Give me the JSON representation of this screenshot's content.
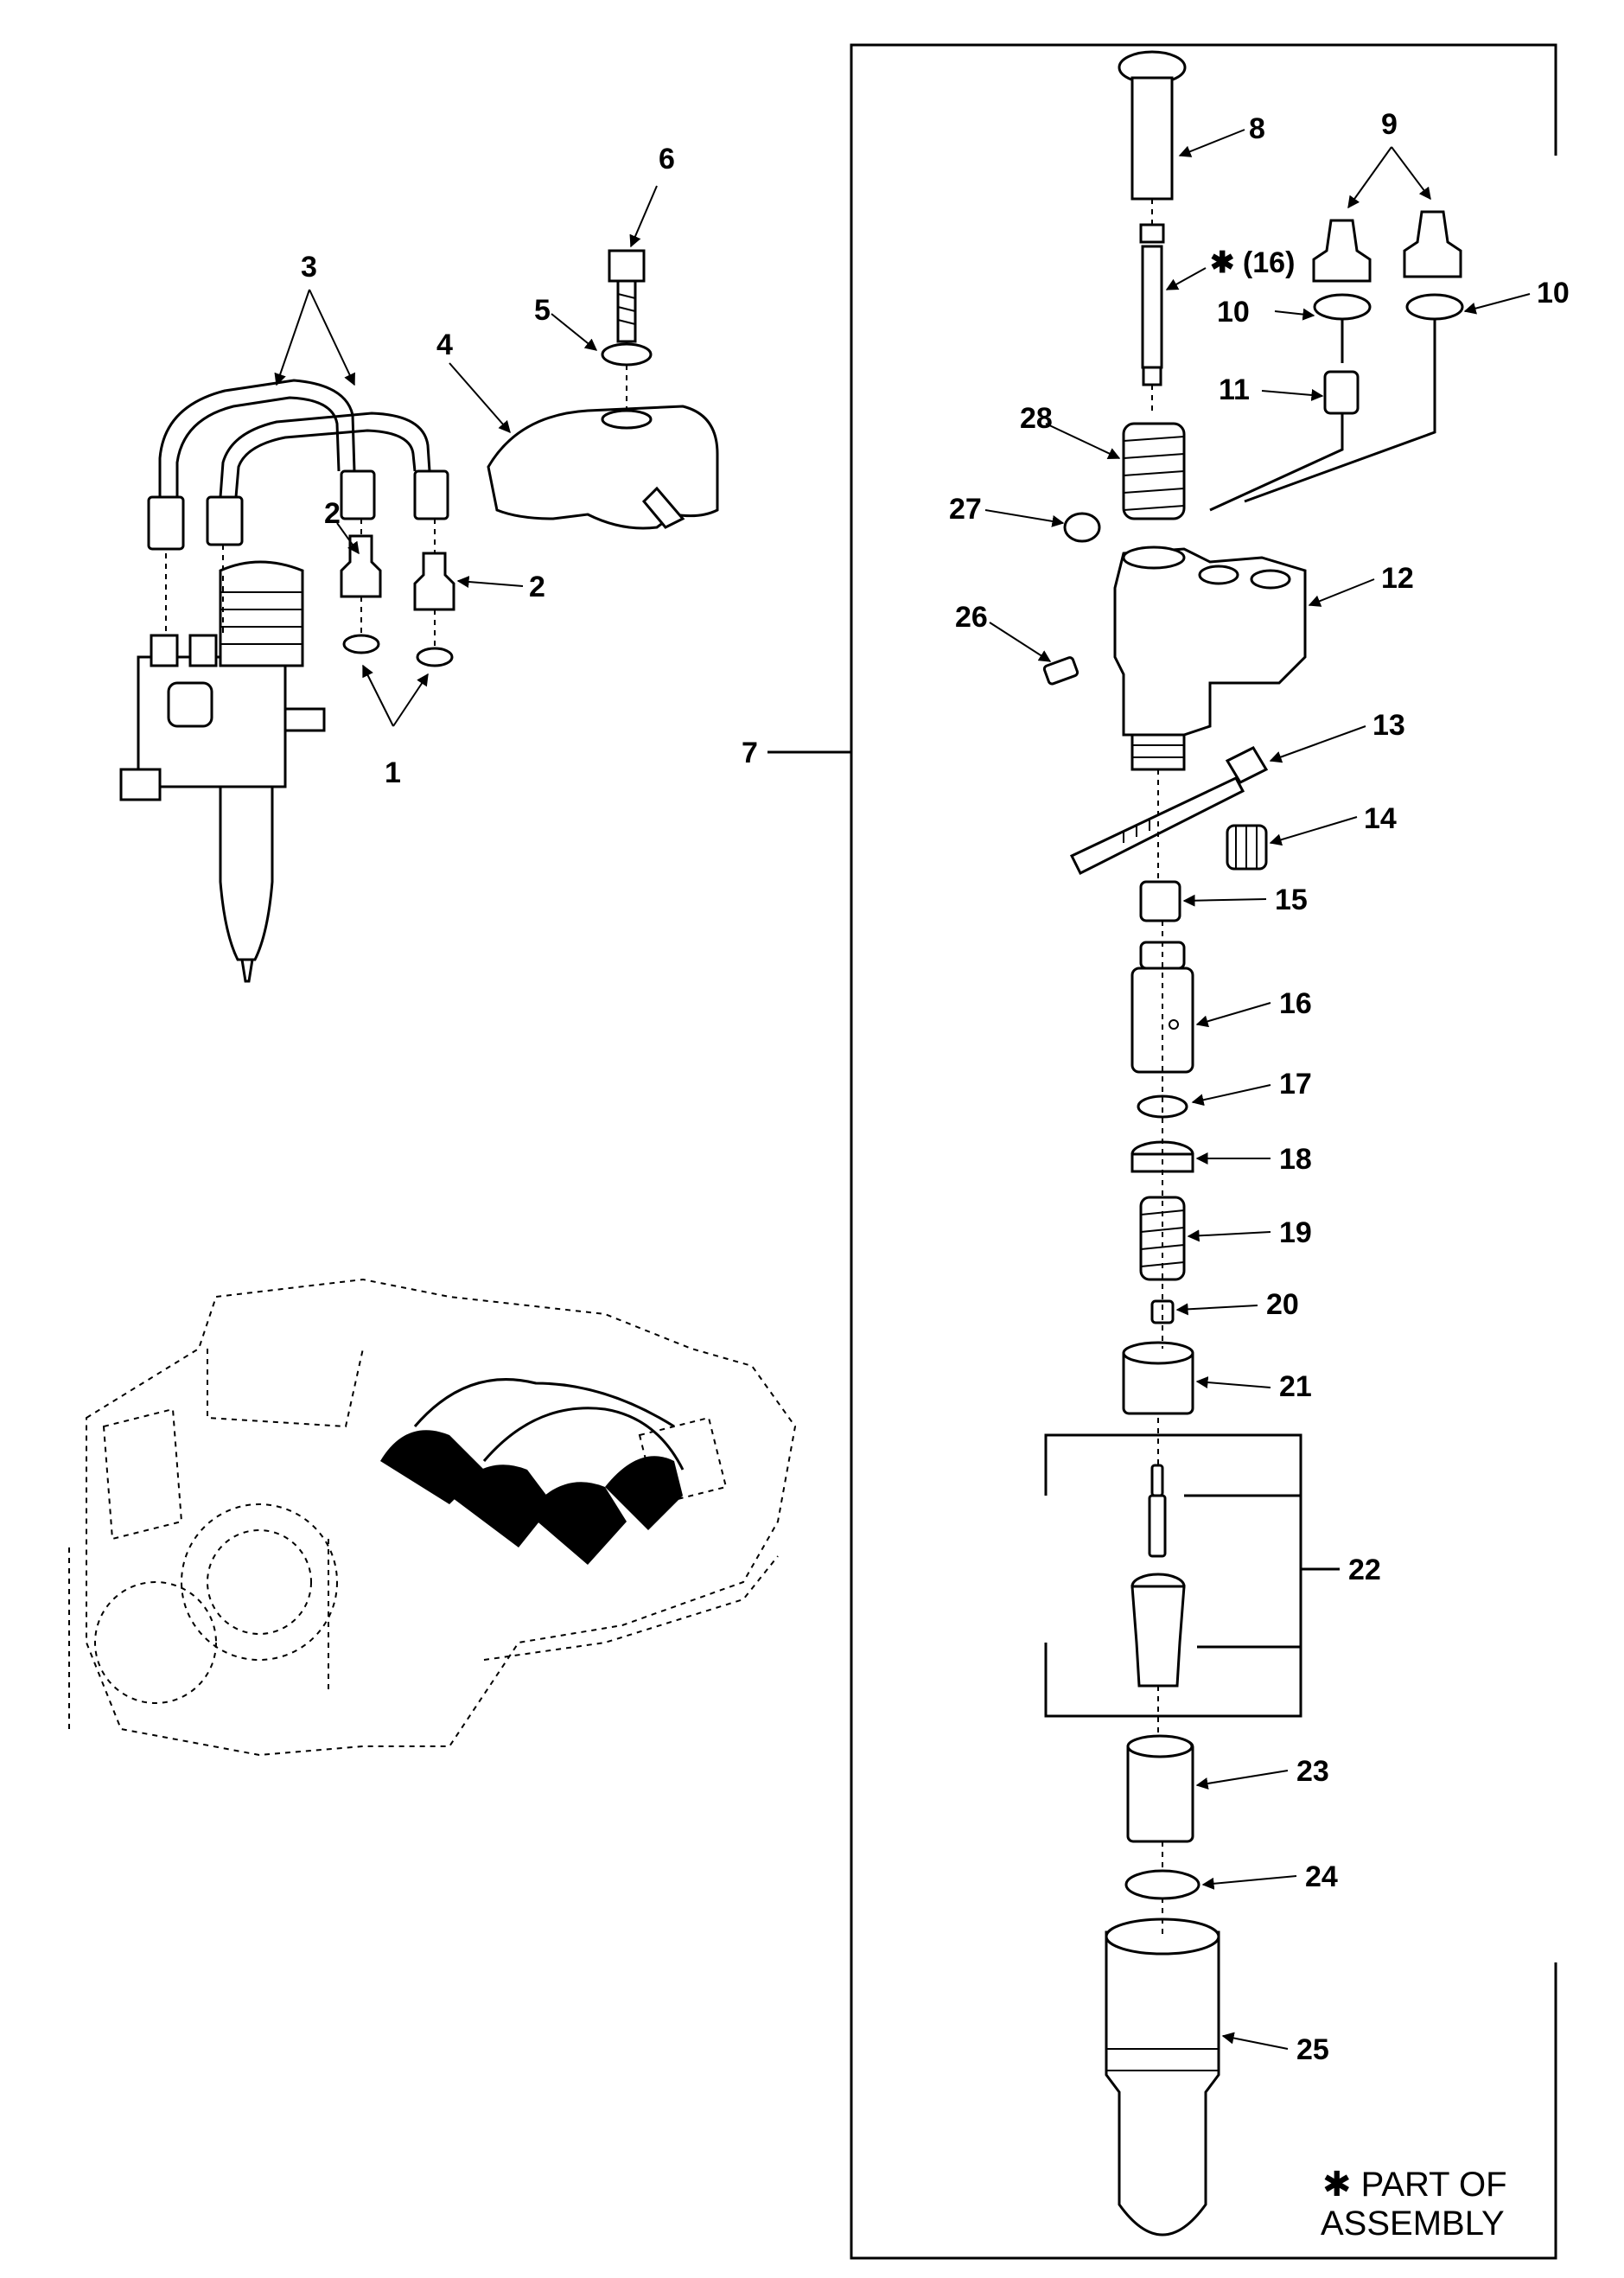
{
  "callouts": {
    "c1": "1",
    "c2a": "2",
    "c2b": "2",
    "c3": "3",
    "c4": "4",
    "c5": "5",
    "c6": "6",
    "c7": "7",
    "c8": "8",
    "c9": "9",
    "c10a": "10",
    "c10b": "10",
    "c11": "11",
    "c12": "12",
    "c13": "13",
    "c14": "14",
    "c15": "15",
    "c16": "16",
    "c16p": "✱ (16)",
    "c17": "17",
    "c18": "18",
    "c19": "19",
    "c20": "20",
    "c21": "21",
    "c22": "22",
    "c23": "23",
    "c24": "24",
    "c25": "25",
    "c26": "26",
    "c27": "27",
    "c28": "28"
  },
  "note": {
    "line1": "✱ PART OF",
    "line2": "ASSEMBLY"
  },
  "colors": {
    "ink": "#000000",
    "paper": "#ffffff"
  }
}
